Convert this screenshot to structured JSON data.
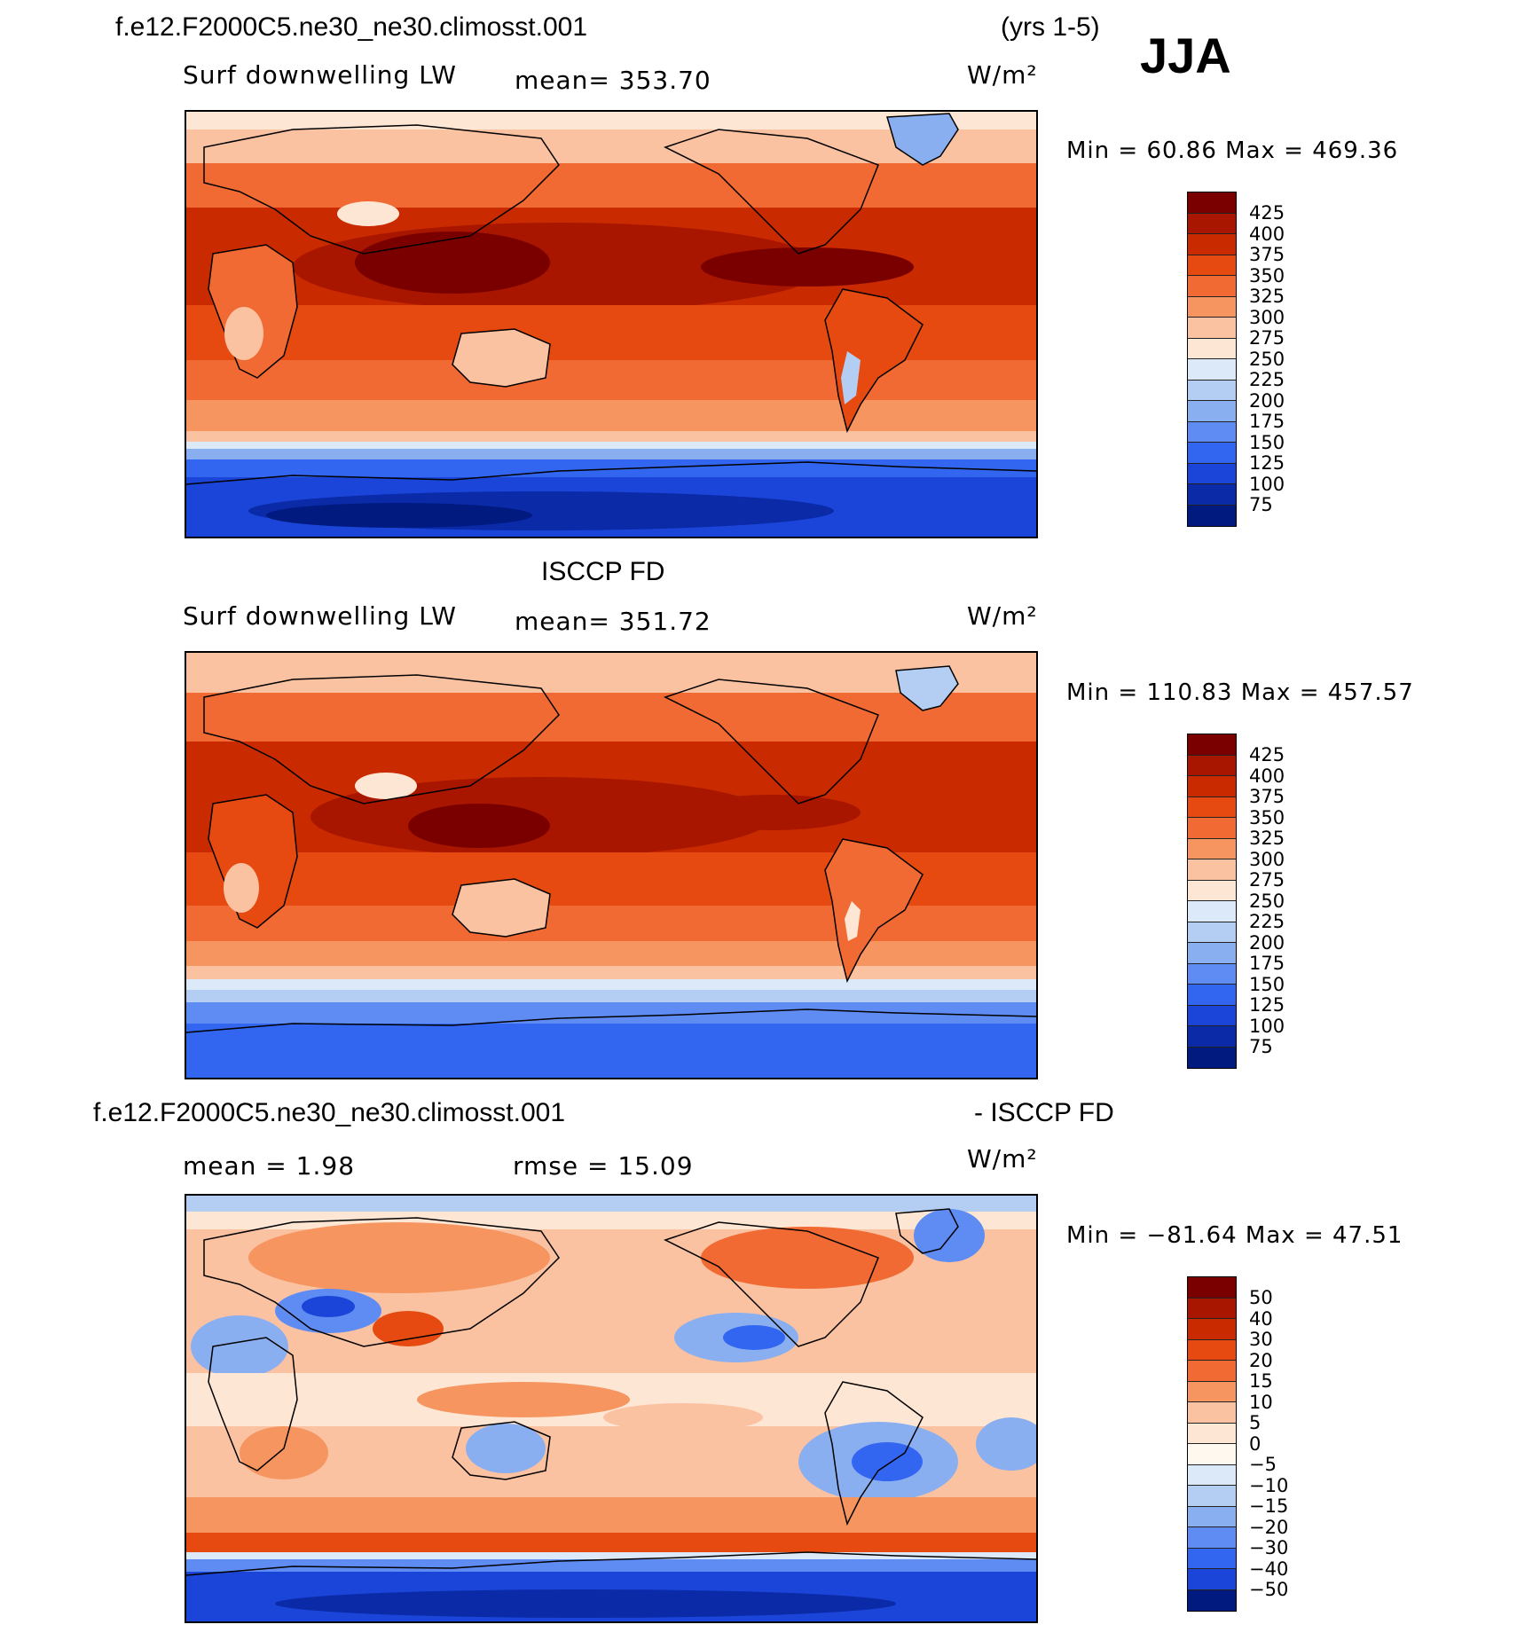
{
  "season": "JJA",
  "panels": [
    {
      "title_left": "f.e12.F2000C5.ne30_ne30.climosst.001",
      "title_right": "(yrs 1-5)",
      "variable": "Surf  downwelling  LW",
      "stat_text": "mean=  353.70",
      "stat2_text": "",
      "units": "W/m²",
      "minmax": "Min  =    60.86  Max  =  469.36",
      "colorbar_labels": [
        "425",
        "400",
        "375",
        "350",
        "325",
        "300",
        "275",
        "250",
        "225",
        "200",
        "175",
        "150",
        "125",
        "100",
        "75"
      ]
    },
    {
      "title_left": "ISCCP FD",
      "title_right": "",
      "variable": "Surf  downwelling  LW",
      "stat_text": "mean=  351.72",
      "stat2_text": "",
      "units": "W/m²",
      "minmax": "Min  =  110.83  Max  =  457.57",
      "colorbar_labels": [
        "425",
        "400",
        "375",
        "350",
        "325",
        "300",
        "275",
        "250",
        "225",
        "200",
        "175",
        "150",
        "125",
        "100",
        "75"
      ]
    },
    {
      "title_left": "f.e12.F2000C5.ne30_ne30.climosst.001",
      "title_right": "- ISCCP FD",
      "variable": "",
      "stat_text": "mean  =     1.98",
      "stat2_text": "rmse  =    15.09",
      "units": "W/m²",
      "minmax": "Min  =  −81.64  Max  =    47.51",
      "colorbar_labels": [
        "50",
        "40",
        "30",
        "20",
        "15",
        "10",
        "5",
        "0",
        "−5",
        "−10",
        "−15",
        "−20",
        "−30",
        "−40",
        "−50"
      ]
    }
  ],
  "colors": {
    "abs_scale": [
      "#7a0000",
      "#a81600",
      "#c92a00",
      "#e64a10",
      "#f26a33",
      "#f6955f",
      "#fbc2a2",
      "#fde6d3",
      "#dbe9f8",
      "#b4cdf2",
      "#8aaff0",
      "#5f8cf2",
      "#3366f0",
      "#1a45d8",
      "#0a2aa8",
      "#001a80"
    ],
    "diff_scale": [
      "#7a0000",
      "#a81600",
      "#c92a00",
      "#e64a10",
      "#f26a33",
      "#f6955f",
      "#fbc2a2",
      "#fde6d3",
      "#fff8ef",
      "#dbe9f8",
      "#b4cdf2",
      "#8aaff0",
      "#5f8cf2",
      "#3366f0",
      "#1a45d8",
      "#001a80"
    ]
  }
}
